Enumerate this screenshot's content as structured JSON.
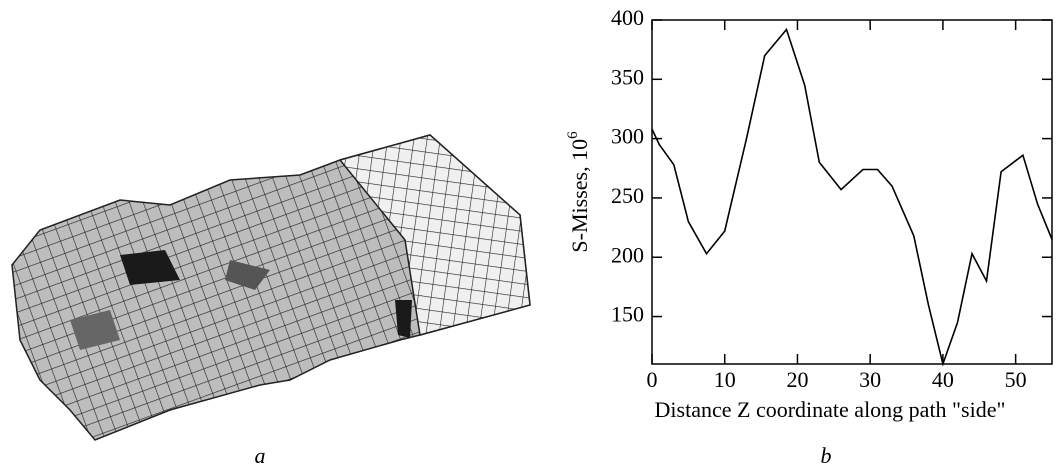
{
  "panel_labels": [
    "a",
    "b"
  ],
  "chart_data": {
    "type": "line",
    "ylabel": "S-Misses, 10",
    "ylabel_exponent": "6",
    "xlabel": "Distance Z coordinate along path \"side\"",
    "x": [
      0,
      1,
      3,
      5,
      7.5,
      10,
      13,
      15.5,
      18.5,
      21,
      23,
      26,
      29,
      31,
      33,
      36,
      38,
      40,
      42,
      44,
      46,
      48,
      51,
      53,
      55
    ],
    "series": [
      {
        "color": "#000000",
        "values": [
          308,
          295,
          278,
          230,
          203,
          222,
          300,
          370,
          392,
          345,
          280,
          257,
          274,
          274,
          260,
          218,
          160,
          110,
          145,
          203,
          180,
          272,
          286,
          245,
          215
        ]
      }
    ],
    "xlim": [
      0,
      55
    ],
    "ylim": [
      110,
      400
    ],
    "xticks": [
      0,
      10,
      20,
      30,
      40,
      50
    ],
    "yticks": [
      150,
      200,
      250,
      300,
      350,
      400
    ]
  }
}
